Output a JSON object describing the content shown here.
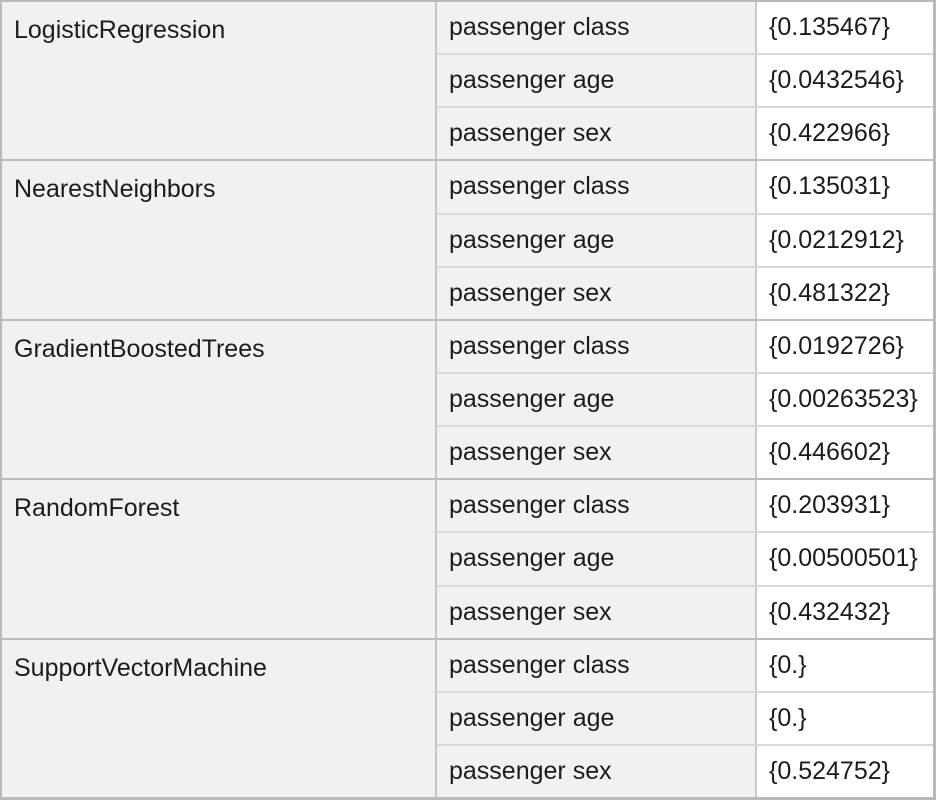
{
  "table": {
    "features": [
      "passenger class",
      "passenger age",
      "passenger sex"
    ],
    "models": [
      {
        "name": "LogisticRegression",
        "values": [
          "{0.135467}",
          "{0.0432546}",
          "{0.422966}"
        ]
      },
      {
        "name": "NearestNeighbors",
        "values": [
          "{0.135031}",
          "{0.0212912}",
          "{0.481322}"
        ]
      },
      {
        "name": "GradientBoostedTrees",
        "values": [
          "{0.0192726}",
          "{0.00263523}",
          "{0.446602}"
        ]
      },
      {
        "name": "RandomForest",
        "values": [
          "{0.203931}",
          "{0.00500501}",
          "{0.432432}"
        ]
      },
      {
        "name": "SupportVectorMachine",
        "values": [
          "{0.}",
          "{0.}",
          "{0.524752}"
        ]
      }
    ],
    "colors": {
      "cell_background": "#f1f1f1",
      "value_background": "#ffffff",
      "group_divider": "#bdbdbd",
      "row_divider": "#d9d9d9",
      "outer_border": "#b9b9b9",
      "text": "#1c1c1c"
    }
  }
}
